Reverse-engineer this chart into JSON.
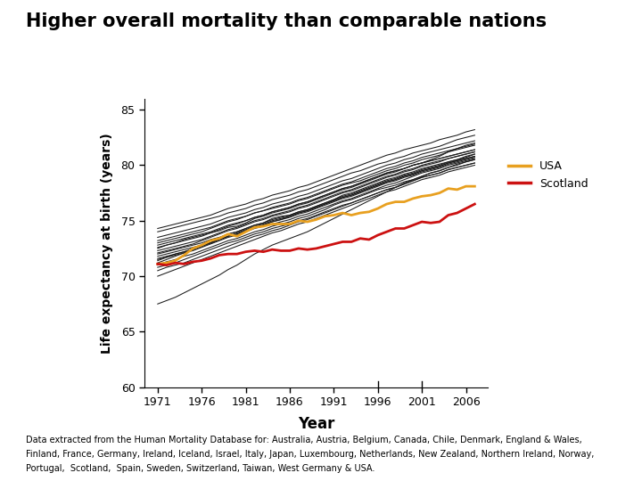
{
  "title": "Higher overall mortality than comparable nations",
  "xlabel": "Year",
  "ylabel": "Life expectancy at birth (years)",
  "years": [
    1971,
    1972,
    1973,
    1974,
    1975,
    1976,
    1977,
    1978,
    1979,
    1980,
    1981,
    1982,
    1983,
    1984,
    1985,
    1986,
    1987,
    1988,
    1989,
    1990,
    1991,
    1992,
    1993,
    1994,
    1995,
    1996,
    1997,
    1998,
    1999,
    2000,
    2001,
    2002,
    2003,
    2004,
    2005,
    2006,
    2007
  ],
  "usa": [
    71.1,
    71.2,
    71.4,
    71.9,
    72.5,
    72.8,
    73.2,
    73.4,
    73.8,
    73.6,
    74.0,
    74.4,
    74.5,
    74.7,
    74.7,
    74.7,
    75.0,
    74.9,
    75.1,
    75.4,
    75.5,
    75.7,
    75.5,
    75.7,
    75.8,
    76.1,
    76.5,
    76.7,
    76.7,
    77.0,
    77.2,
    77.3,
    77.5,
    77.9,
    77.8,
    78.1,
    78.1
  ],
  "scotland": [
    71.1,
    71.0,
    71.2,
    71.1,
    71.3,
    71.4,
    71.6,
    71.9,
    72.0,
    72.0,
    72.2,
    72.3,
    72.2,
    72.4,
    72.3,
    72.3,
    72.5,
    72.4,
    72.5,
    72.7,
    72.9,
    73.1,
    73.1,
    73.4,
    73.3,
    73.7,
    74.0,
    74.3,
    74.3,
    74.6,
    74.9,
    74.8,
    74.9,
    75.5,
    75.7,
    76.1,
    76.5
  ],
  "other_countries": [
    [
      72.5,
      72.8,
      73.0,
      73.3,
      73.5,
      73.7,
      73.9,
      74.1,
      74.4,
      74.5,
      74.8,
      75.2,
      75.4,
      75.7,
      75.9,
      76.1,
      76.4,
      76.6,
      76.9,
      77.2,
      77.5,
      77.8,
      78.0,
      78.3,
      78.6,
      78.9,
      79.2,
      79.4,
      79.7,
      80.0,
      80.2,
      80.5,
      80.8,
      81.2,
      81.5,
      81.8,
      82.0
    ],
    [
      71.0,
      71.3,
      71.5,
      71.8,
      72.0,
      72.3,
      72.6,
      72.9,
      73.2,
      73.4,
      73.7,
      74.0,
      74.2,
      74.5,
      74.7,
      74.9,
      75.2,
      75.4,
      75.7,
      76.0,
      76.4,
      76.7,
      76.9,
      77.2,
      77.5,
      77.8,
      78.0,
      78.2,
      78.5,
      78.7,
      79.0,
      79.3,
      79.5,
      79.8,
      80.0,
      80.3,
      80.5
    ],
    [
      73.0,
      73.2,
      73.4,
      73.6,
      73.8,
      74.0,
      74.3,
      74.6,
      74.9,
      75.1,
      75.4,
      75.7,
      75.9,
      76.1,
      76.3,
      76.5,
      76.8,
      77.0,
      77.3,
      77.6,
      77.9,
      78.2,
      78.4,
      78.6,
      78.9,
      79.2,
      79.5,
      79.7,
      80.0,
      80.2,
      80.5,
      80.7,
      80.9,
      81.2,
      81.4,
      81.6,
      81.8
    ],
    [
      72.0,
      72.2,
      72.4,
      72.6,
      72.8,
      73.0,
      73.3,
      73.5,
      73.8,
      74.0,
      74.3,
      74.6,
      74.8,
      75.1,
      75.3,
      75.5,
      75.8,
      76.0,
      76.3,
      76.6,
      76.9,
      77.2,
      77.4,
      77.7,
      78.0,
      78.3,
      78.6,
      78.8,
      79.1,
      79.3,
      79.6,
      79.8,
      80.0,
      80.3,
      80.5,
      80.7,
      81.0
    ],
    [
      71.5,
      71.7,
      71.9,
      72.1,
      72.3,
      72.6,
      72.9,
      73.2,
      73.5,
      73.7,
      74.0,
      74.3,
      74.5,
      74.7,
      74.9,
      75.1,
      75.4,
      75.6,
      75.9,
      76.2,
      76.5,
      76.8,
      77.0,
      77.3,
      77.6,
      77.9,
      78.2,
      78.4,
      78.7,
      79.0,
      79.3,
      79.5,
      79.7,
      80.0,
      80.2,
      80.4,
      80.6
    ],
    [
      72.8,
      73.0,
      73.2,
      73.4,
      73.6,
      73.8,
      74.0,
      74.3,
      74.6,
      74.8,
      75.0,
      75.3,
      75.5,
      75.8,
      76.0,
      76.2,
      76.5,
      76.7,
      77.0,
      77.3,
      77.6,
      77.9,
      78.1,
      78.4,
      78.7,
      79.0,
      79.3,
      79.5,
      79.7,
      80.0,
      80.2,
      80.4,
      80.6,
      80.8,
      81.0,
      81.2,
      81.4
    ],
    [
      70.5,
      70.8,
      71.0,
      71.2,
      71.5,
      71.8,
      72.1,
      72.4,
      72.7,
      73.0,
      73.3,
      73.6,
      73.8,
      74.1,
      74.3,
      74.6,
      74.9,
      75.1,
      75.4,
      75.7,
      76.0,
      76.3,
      76.6,
      76.9,
      77.2,
      77.5,
      77.8,
      78.0,
      78.3,
      78.6,
      78.9,
      79.1,
      79.3,
      79.6,
      79.8,
      80.0,
      80.2
    ],
    [
      74.0,
      74.2,
      74.4,
      74.6,
      74.8,
      75.0,
      75.2,
      75.4,
      75.7,
      75.9,
      76.1,
      76.4,
      76.6,
      76.9,
      77.1,
      77.3,
      77.6,
      77.8,
      78.1,
      78.4,
      78.7,
      79.0,
      79.3,
      79.5,
      79.8,
      80.1,
      80.3,
      80.6,
      80.8,
      81.1,
      81.3,
      81.5,
      81.7,
      82.0,
      82.3,
      82.5,
      82.7
    ],
    [
      70.0,
      70.3,
      70.6,
      70.9,
      71.2,
      71.5,
      71.8,
      72.1,
      72.4,
      72.7,
      73.0,
      73.3,
      73.6,
      73.9,
      74.1,
      74.4,
      74.7,
      74.9,
      75.2,
      75.5,
      75.8,
      76.1,
      76.4,
      76.7,
      77.0,
      77.3,
      77.6,
      77.8,
      78.1,
      78.4,
      78.7,
      78.9,
      79.1,
      79.4,
      79.6,
      79.8,
      80.0
    ],
    [
      71.8,
      72.0,
      72.2,
      72.4,
      72.6,
      72.8,
      73.0,
      73.3,
      73.6,
      73.8,
      74.1,
      74.4,
      74.6,
      74.9,
      75.1,
      75.4,
      75.7,
      75.9,
      76.2,
      76.5,
      76.8,
      77.1,
      77.3,
      77.6,
      77.9,
      78.2,
      78.5,
      78.7,
      79.0,
      79.2,
      79.5,
      79.7,
      79.9,
      80.2,
      80.4,
      80.6,
      80.8
    ],
    [
      73.5,
      73.7,
      73.9,
      74.1,
      74.3,
      74.5,
      74.7,
      75.0,
      75.3,
      75.5,
      75.7,
      76.0,
      76.2,
      76.5,
      76.7,
      76.9,
      77.2,
      77.4,
      77.7,
      78.0,
      78.3,
      78.6,
      78.8,
      79.1,
      79.4,
      79.7,
      80.0,
      80.2,
      80.5,
      80.7,
      81.0,
      81.2,
      81.4,
      81.6,
      81.8,
      82.0,
      82.2
    ],
    [
      72.3,
      72.5,
      72.7,
      72.9,
      73.1,
      73.3,
      73.6,
      73.9,
      74.2,
      74.4,
      74.7,
      75.0,
      75.2,
      75.5,
      75.7,
      75.9,
      76.2,
      76.4,
      76.7,
      77.0,
      77.3,
      77.6,
      77.8,
      78.1,
      78.4,
      78.7,
      79.0,
      79.2,
      79.5,
      79.7,
      80.0,
      80.2,
      80.4,
      80.6,
      80.8,
      81.0,
      81.2
    ],
    [
      71.2,
      71.5,
      71.8,
      72.1,
      72.4,
      72.7,
      73.0,
      73.3,
      73.6,
      73.9,
      74.2,
      74.5,
      74.7,
      75.0,
      75.2,
      75.4,
      75.7,
      75.9,
      76.2,
      76.5,
      76.8,
      77.1,
      77.3,
      77.6,
      77.9,
      78.2,
      78.5,
      78.7,
      79.0,
      79.2,
      79.5,
      79.7,
      79.9,
      80.2,
      80.4,
      80.6,
      80.8
    ],
    [
      70.8,
      71.0,
      71.2,
      71.5,
      71.8,
      72.1,
      72.4,
      72.7,
      73.0,
      73.2,
      73.5,
      73.8,
      74.0,
      74.3,
      74.5,
      74.7,
      75.0,
      75.2,
      75.5,
      75.8,
      76.1,
      76.4,
      76.6,
      76.9,
      77.2,
      77.5,
      77.8,
      78.0,
      78.3,
      78.6,
      78.9,
      79.1,
      79.3,
      79.6,
      79.8,
      80.0,
      80.2
    ],
    [
      67.5,
      67.8,
      68.1,
      68.5,
      68.9,
      69.3,
      69.7,
      70.1,
      70.6,
      71.0,
      71.5,
      72.0,
      72.4,
      72.8,
      73.1,
      73.4,
      73.7,
      74.0,
      74.4,
      74.8,
      75.2,
      75.6,
      76.0,
      76.4,
      76.8,
      77.2,
      77.6,
      78.0,
      78.4,
      78.7,
      79.0,
      79.3,
      79.5,
      79.8,
      80.1,
      80.3,
      80.5
    ],
    [
      74.3,
      74.5,
      74.7,
      74.9,
      75.1,
      75.3,
      75.5,
      75.8,
      76.1,
      76.3,
      76.5,
      76.8,
      77.0,
      77.3,
      77.5,
      77.7,
      78.0,
      78.2,
      78.5,
      78.8,
      79.1,
      79.4,
      79.7,
      80.0,
      80.3,
      80.6,
      80.9,
      81.1,
      81.4,
      81.6,
      81.8,
      82.0,
      82.3,
      82.5,
      82.7,
      83.0,
      83.2
    ],
    [
      72.6,
      72.8,
      73.0,
      73.2,
      73.4,
      73.6,
      73.9,
      74.2,
      74.5,
      74.7,
      75.0,
      75.3,
      75.5,
      75.8,
      76.0,
      76.2,
      76.5,
      76.7,
      77.0,
      77.3,
      77.6,
      77.9,
      78.1,
      78.4,
      78.7,
      79.0,
      79.3,
      79.5,
      79.7,
      80.0,
      80.2,
      80.4,
      80.6,
      80.8,
      81.0,
      81.2,
      81.4
    ],
    [
      71.6,
      71.8,
      72.0,
      72.2,
      72.4,
      72.7,
      73.0,
      73.3,
      73.6,
      73.8,
      74.1,
      74.4,
      74.6,
      74.9,
      75.1,
      75.3,
      75.6,
      75.8,
      76.1,
      76.4,
      76.7,
      77.0,
      77.2,
      77.5,
      77.8,
      78.1,
      78.4,
      78.6,
      78.9,
      79.1,
      79.4,
      79.6,
      79.8,
      80.1,
      80.3,
      80.5,
      80.7
    ],
    [
      72.1,
      72.3,
      72.5,
      72.7,
      72.9,
      73.2,
      73.5,
      73.8,
      74.1,
      74.3,
      74.6,
      74.9,
      75.1,
      75.4,
      75.6,
      75.8,
      76.1,
      76.3,
      76.6,
      76.9,
      77.2,
      77.5,
      77.7,
      78.0,
      78.3,
      78.6,
      78.9,
      79.1,
      79.4,
      79.6,
      79.9,
      80.1,
      80.3,
      80.6,
      80.8,
      81.0,
      81.2
    ],
    [
      73.2,
      73.4,
      73.6,
      73.8,
      74.0,
      74.2,
      74.4,
      74.7,
      75.0,
      75.2,
      75.4,
      75.7,
      75.9,
      76.2,
      76.4,
      76.6,
      76.9,
      77.1,
      77.4,
      77.7,
      78.0,
      78.3,
      78.5,
      78.8,
      79.1,
      79.4,
      79.7,
      79.9,
      80.2,
      80.4,
      80.7,
      80.9,
      81.1,
      81.3,
      81.5,
      81.7,
      81.9
    ],
    [
      71.4,
      71.7,
      72.0,
      72.2,
      72.5,
      72.7,
      73.0,
      73.4,
      73.8,
      74.0,
      74.3,
      74.6,
      74.8,
      75.2,
      75.4,
      75.5,
      75.8,
      76.0,
      76.3,
      76.6,
      76.9,
      77.3,
      77.5,
      77.8,
      78.1,
      78.4,
      78.7,
      78.9,
      79.2,
      79.4,
      79.7,
      79.9,
      80.1,
      80.3,
      80.5,
      80.8,
      81.0
    ]
  ],
  "usa_color": "#e8a020",
  "scotland_color": "#cc1111",
  "other_color": "#1a1a1a",
  "background_color": "#ffffff",
  "ylim": [
    60,
    86
  ],
  "yticks": [
    60,
    65,
    70,
    75,
    80,
    85
  ],
  "xticks": [
    1971,
    1976,
    1981,
    1986,
    1991,
    1996,
    2001,
    2006
  ],
  "caption_line1": "Data extracted from the Human Mortality Database for: Australia, Austria, Belgium, Canada, Chile, Denmark, England & Wales,",
  "caption_line2": "Finland, France, Germany, Ireland, Iceland, Israel, Italy, Japan, Luxembourg, Netherlands, New Zealand, Northern Ireland, Norway,",
  "caption_line3": "Portugal,  Scotland,  Spain, Sweden, Switzerland, Taiwan, West Germany & USA."
}
